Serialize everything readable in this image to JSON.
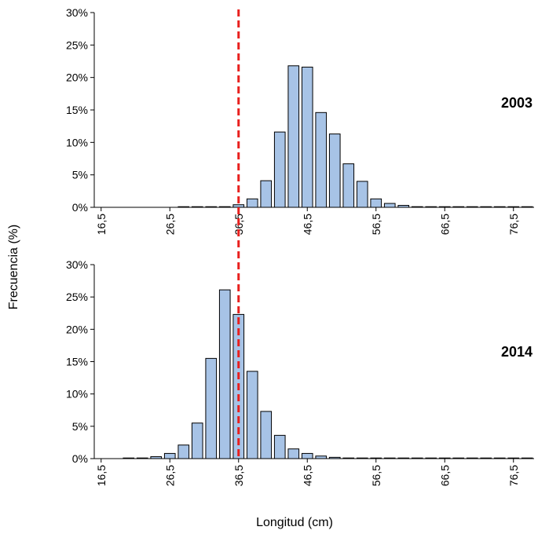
{
  "chart_data": {
    "type": "bar",
    "xlabel": "Longitud (cm)",
    "ylabel": "Frecuencia (%)",
    "ylim": [
      0,
      30
    ],
    "y_ticks": [
      "0%",
      "5%",
      "10%",
      "15%",
      "20%",
      "25%",
      "30%"
    ],
    "x_ticks": [
      "16,5",
      "26,5",
      "36,5",
      "46,5",
      "56,5",
      "66,5",
      "76,5"
    ],
    "x_tick_values": [
      16.5,
      26.5,
      36.5,
      46.5,
      56.5,
      66.5,
      76.5
    ],
    "bin_width": 2,
    "reference_line_x": 36.5,
    "bar_color": "#a7c3e6",
    "bar_edge_color": "#000000",
    "reference_line_color": "#e8201e",
    "panels": [
      {
        "label": "2003",
        "bars": [
          {
            "x": 28.5,
            "value": 0.05
          },
          {
            "x": 30.5,
            "value": 0.05
          },
          {
            "x": 32.5,
            "value": 0.05
          },
          {
            "x": 34.5,
            "value": 0.1
          },
          {
            "x": 36.5,
            "value": 0.4
          },
          {
            "x": 38.5,
            "value": 1.3
          },
          {
            "x": 40.5,
            "value": 4.1
          },
          {
            "x": 42.5,
            "value": 11.6
          },
          {
            "x": 44.5,
            "value": 21.8
          },
          {
            "x": 46.5,
            "value": 21.6
          },
          {
            "x": 48.5,
            "value": 14.6
          },
          {
            "x": 50.5,
            "value": 11.3
          },
          {
            "x": 52.5,
            "value": 6.7
          },
          {
            "x": 54.5,
            "value": 4.0
          },
          {
            "x": 56.5,
            "value": 1.3
          },
          {
            "x": 58.5,
            "value": 0.6
          },
          {
            "x": 60.5,
            "value": 0.3
          },
          {
            "x": 62.5,
            "value": 0.1
          },
          {
            "x": 64.5,
            "value": 0.05
          },
          {
            "x": 66.5,
            "value": 0.05
          },
          {
            "x": 68.5,
            "value": 0.05
          },
          {
            "x": 70.5,
            "value": 0.05
          },
          {
            "x": 72.5,
            "value": 0.05
          },
          {
            "x": 74.5,
            "value": 0.05
          },
          {
            "x": 76.5,
            "value": 0.05
          },
          {
            "x": 78.5,
            "value": 0.05
          }
        ]
      },
      {
        "label": "2014",
        "bars": [
          {
            "x": 20.5,
            "value": 0.05
          },
          {
            "x": 22.5,
            "value": 0.1
          },
          {
            "x": 24.5,
            "value": 0.3
          },
          {
            "x": 26.5,
            "value": 0.8
          },
          {
            "x": 28.5,
            "value": 2.1
          },
          {
            "x": 30.5,
            "value": 5.5
          },
          {
            "x": 32.5,
            "value": 15.5
          },
          {
            "x": 34.5,
            "value": 26.1
          },
          {
            "x": 36.5,
            "value": 22.3
          },
          {
            "x": 38.5,
            "value": 13.5
          },
          {
            "x": 40.5,
            "value": 7.3
          },
          {
            "x": 42.5,
            "value": 3.6
          },
          {
            "x": 44.5,
            "value": 1.5
          },
          {
            "x": 46.5,
            "value": 0.8
          },
          {
            "x": 48.5,
            "value": 0.4
          },
          {
            "x": 50.5,
            "value": 0.2
          },
          {
            "x": 52.5,
            "value": 0.1
          },
          {
            "x": 54.5,
            "value": 0.05
          },
          {
            "x": 56.5,
            "value": 0.05
          },
          {
            "x": 58.5,
            "value": 0.05
          },
          {
            "x": 60.5,
            "value": 0.05
          },
          {
            "x": 62.5,
            "value": 0.05
          },
          {
            "x": 64.5,
            "value": 0.05
          },
          {
            "x": 66.5,
            "value": 0.05
          },
          {
            "x": 68.5,
            "value": 0.05
          },
          {
            "x": 70.5,
            "value": 0.05
          },
          {
            "x": 72.5,
            "value": 0.05
          },
          {
            "x": 74.5,
            "value": 0.05
          },
          {
            "x": 76.5,
            "value": 0.05
          },
          {
            "x": 78.5,
            "value": 0.05
          }
        ]
      }
    ]
  }
}
